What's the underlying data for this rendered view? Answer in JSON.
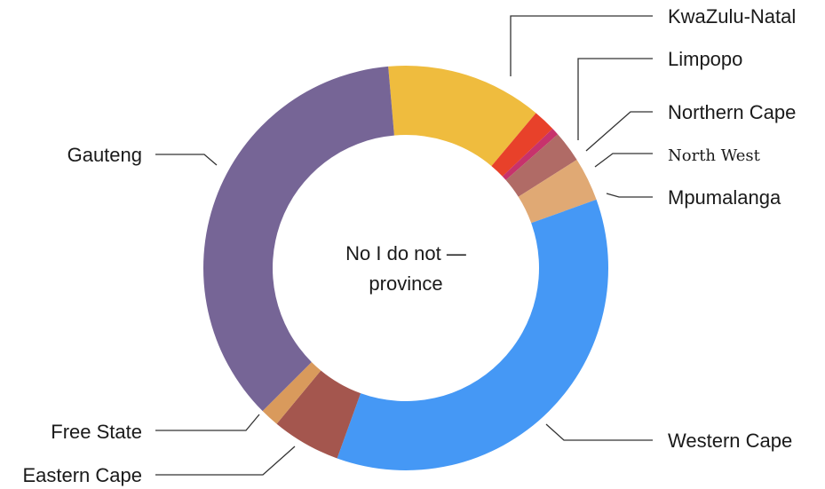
{
  "chart_data": {
    "type": "pie",
    "donut": true,
    "center_label": [
      "No I do not —",
      "province"
    ],
    "categories": [
      "KwaZulu-Natal",
      "Limpopo",
      "Northern Cape",
      "North West",
      "Mpumalanga",
      "Western Cape",
      "Eastern Cape",
      "Free State",
      "Gauteng"
    ],
    "values": [
      12.5,
      1.8,
      0.6,
      2.5,
      3.5,
      36.0,
      5.5,
      1.5,
      36.1
    ],
    "colors": [
      "#EFBC3E",
      "#E8412A",
      "#C7326C",
      "#B06B66",
      "#E0A974",
      "#4598F5",
      "#A4564E",
      "#D99A5C",
      "#766596"
    ],
    "legend": "callout labels"
  }
}
